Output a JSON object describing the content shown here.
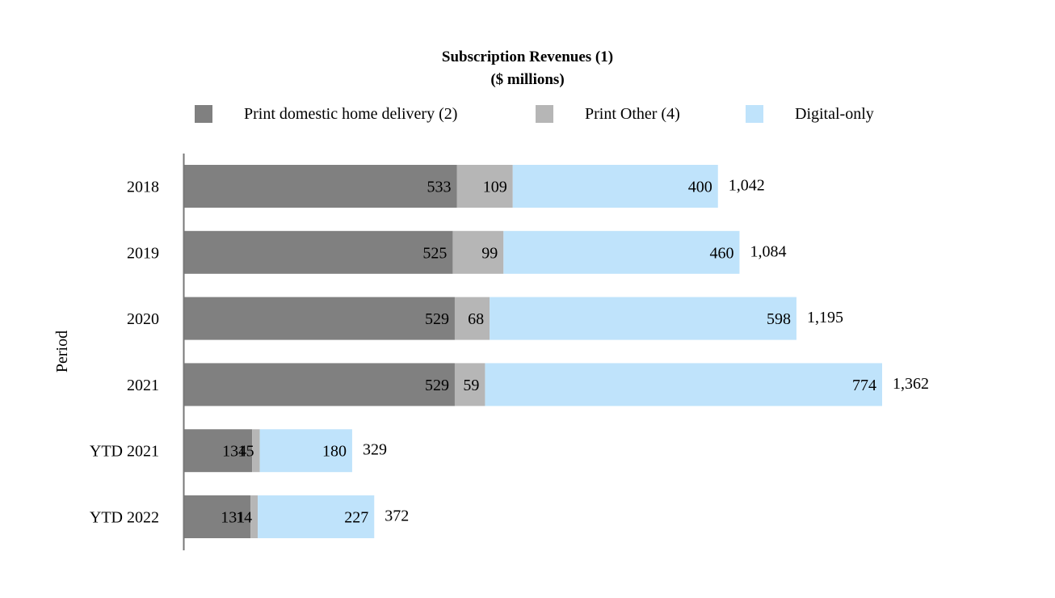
{
  "chart_data": {
    "type": "bar",
    "orientation": "horizontal",
    "stacked": true,
    "title": "Subscription Revenues (1)",
    "subtitle": "($ millions)",
    "ylabel": "Period",
    "categories": [
      "2018",
      "2019",
      "2020",
      "2021",
      "YTD 2021",
      "YTD 2022"
    ],
    "series": [
      {
        "name": "Print domestic home delivery (2)",
        "color": "#808080",
        "values": [
          533,
          525,
          529,
          529,
          134,
          131
        ]
      },
      {
        "name": "Print Other (4)",
        "color": "#b6b6b6",
        "values": [
          109,
          99,
          68,
          59,
          15,
          14
        ]
      },
      {
        "name": "Digital-only",
        "color": "#bfe3fb",
        "values": [
          400,
          460,
          598,
          774,
          180,
          227
        ]
      }
    ],
    "totals": [
      "1,042",
      "1,084",
      "1,195",
      "1,362",
      "329",
      "372"
    ],
    "xlim": [
      0,
      1362
    ],
    "grid": false,
    "legend_position": "top"
  }
}
